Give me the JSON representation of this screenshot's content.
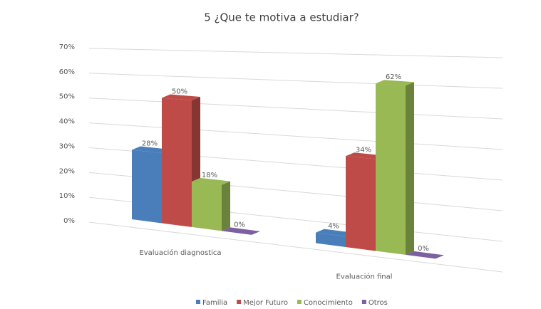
{
  "chart_data": {
    "type": "bar3d",
    "title": "5 ¿Que te motiva a estudiar?",
    "categories": [
      "Evaluación diagnostica",
      "Evaluación final"
    ],
    "series": [
      {
        "name": "Familia",
        "color": "#4a7ebb",
        "values": [
          28,
          4
        ],
        "value_labels": [
          "28%",
          "4%"
        ]
      },
      {
        "name": "Mejor Futuro",
        "color": "#be4b48",
        "values": [
          50,
          34
        ],
        "value_labels": [
          "50%",
          "34%"
        ]
      },
      {
        "name": "Conocimiento",
        "color": "#98b954",
        "values": [
          18,
          62
        ],
        "value_labels": [
          "18%",
          "62%"
        ]
      },
      {
        "name": "Otros",
        "color": "#7d60a0",
        "values": [
          0,
          0
        ],
        "value_labels": [
          "0%",
          "0%"
        ]
      }
    ],
    "ylim": [
      0,
      70
    ],
    "yticks": [
      {
        "value": 0,
        "label": "0%"
      },
      {
        "value": 10,
        "label": "10%"
      },
      {
        "value": 20,
        "label": "20%"
      },
      {
        "value": 30,
        "label": "30%"
      },
      {
        "value": 40,
        "label": "40%"
      },
      {
        "value": 50,
        "label": "50%"
      },
      {
        "value": 60,
        "label": "60%"
      },
      {
        "value": 70,
        "label": "70%"
      }
    ],
    "grid": true,
    "legend": "bottom"
  }
}
